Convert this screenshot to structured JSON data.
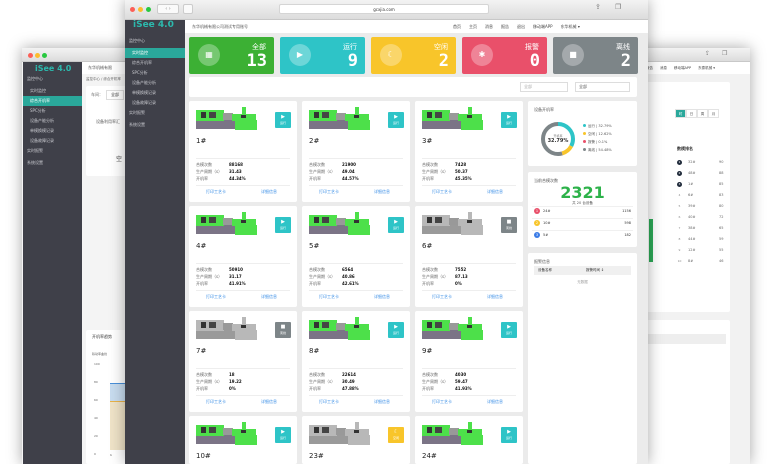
{
  "colors": {
    "green": "#3cb034",
    "teal": "#2ec4c7",
    "yellow": "#f8c52a",
    "red": "#e9506a",
    "gray": "#7d8588",
    "sidebar": "#3f4049",
    "active": "#2aa89b"
  },
  "left_window": {
    "logo": "iSee 4.0",
    "title": "东华机械有限",
    "breadcrumb": "监控中心 / 综合开机率",
    "workshop_label": "车间：",
    "workshop_value": "全部",
    "chart_title": "设备利用率汇",
    "empty_text": "空",
    "sidebar": [
      {
        "label": "监控中心",
        "group": true
      },
      {
        "label": "实时监控"
      },
      {
        "label": "综合开机率",
        "active": true
      },
      {
        "label": "SPC分析"
      },
      {
        "label": "设备产能分析"
      },
      {
        "label": "单模换模记录"
      },
      {
        "label": "设备故障记录"
      },
      {
        "label": "实时报警",
        "group": true
      },
      {
        "label": "系统设置",
        "group": true
      }
    ],
    "trend": {
      "title": "开机率趋势",
      "legend": "稼动率曲线",
      "yticks": [
        "100",
        "80",
        "60",
        "40",
        "20",
        "0"
      ],
      "xtick": "1"
    }
  },
  "right_window": {
    "header": [
      "报告",
      "消息",
      "移动端APP",
      "东泰机械 ▾"
    ],
    "tabs": [
      {
        "label": "时",
        "active": true
      },
      {
        "label": "日"
      },
      {
        "label": "周"
      },
      {
        "label": "月"
      }
    ],
    "ranking_title": "数模排名",
    "ranking": [
      {
        "rank": "1",
        "name": "32#",
        "value": "90"
      },
      {
        "rank": "2",
        "name": "48#",
        "value": "88"
      },
      {
        "rank": "3",
        "name": "1#",
        "value": "85"
      },
      {
        "rank": "4",
        "name": "6#",
        "value": "83"
      },
      {
        "rank": "5",
        "name": "39#",
        "value": "80"
      },
      {
        "rank": "6",
        "name": "40#",
        "value": "72"
      },
      {
        "rank": "7",
        "name": "38#",
        "value": "65"
      },
      {
        "rank": "8",
        "name": "44#",
        "value": "59"
      },
      {
        "rank": "9",
        "name": "12#",
        "value": "55"
      },
      {
        "rank": "10",
        "name": "8#",
        "value": "46"
      }
    ]
  },
  "main": {
    "url": "gcxjia.com",
    "logo": "iSee 4.0",
    "company": "东华机械有限公司测试专用账号",
    "header": [
      "首页",
      "主页",
      "消息",
      "报告",
      "退出",
      "移动端APP",
      "东华机械 ▾"
    ],
    "sidebar": [
      {
        "label": "监控中心",
        "group": true
      },
      {
        "label": "实时监控",
        "active": true
      },
      {
        "label": "综合开机率"
      },
      {
        "label": "SPC分析"
      },
      {
        "label": "设备产能分析"
      },
      {
        "label": "单模换模记录"
      },
      {
        "label": "设备故障记录"
      },
      {
        "label": "实时报警",
        "group": true
      },
      {
        "label": "系统设置",
        "group": true
      }
    ],
    "stats": [
      {
        "label": "全部",
        "value": "13",
        "icon": "grid",
        "color": "#3cb034"
      },
      {
        "label": "运行",
        "value": "9",
        "icon": "play",
        "color": "#2ec4c7"
      },
      {
        "label": "空闲",
        "value": "2",
        "icon": "moon",
        "color": "#f8c52a"
      },
      {
        "label": "报警",
        "value": "0",
        "icon": "alarm",
        "color": "#e9506a"
      },
      {
        "label": "离线",
        "value": "2",
        "icon": "stop",
        "color": "#7d8588"
      }
    ],
    "filters": {
      "select1": "全部",
      "select2": "全部"
    },
    "field_labels": {
      "shots": "合模次数",
      "cycle": "生产周期（s）",
      "rate": "开机率",
      "print": "打印工艺卡",
      "detail": "详细信息"
    },
    "machines": [
      {
        "name": "1#",
        "status": "运行",
        "state": "run",
        "shots": "88168",
        "cycle": "31.43",
        "rate": "44.34%"
      },
      {
        "name": "2#",
        "status": "运行",
        "state": "run",
        "shots": "21900",
        "cycle": "49.04",
        "rate": "44.57%"
      },
      {
        "name": "3#",
        "status": "运行",
        "state": "run",
        "shots": "7428",
        "cycle": "50.37",
        "rate": "45.35%"
      },
      {
        "name": "4#",
        "status": "运行",
        "state": "run",
        "shots": "50910",
        "cycle": "31.17",
        "rate": "41.91%"
      },
      {
        "name": "5#",
        "status": "运行",
        "state": "run",
        "shots": "6564",
        "cycle": "40.86",
        "rate": "42.61%"
      },
      {
        "name": "6#",
        "status": "离线",
        "state": "off",
        "shots": "7552",
        "cycle": "87.13",
        "rate": "0%"
      },
      {
        "name": "7#",
        "status": "离线",
        "state": "off",
        "shots": "18",
        "cycle": "19.22",
        "rate": "0%"
      },
      {
        "name": "8#",
        "status": "运行",
        "state": "run",
        "shots": "22614",
        "cycle": "30.49",
        "rate": "47.88%"
      },
      {
        "name": "9#",
        "status": "运行",
        "state": "run",
        "shots": "4030",
        "cycle": "59.47",
        "rate": "41.93%"
      },
      {
        "name": "10#",
        "status": "运行",
        "state": "run"
      },
      {
        "name": "23#",
        "status": "空闲",
        "state": "idle"
      },
      {
        "name": "24#",
        "status": "运行",
        "state": "run"
      }
    ],
    "uptime": {
      "title": "设备开机率",
      "center_label": "开机率",
      "center_value": "32.79%",
      "legend": [
        {
          "label": "运行 | 32.79%",
          "color": "#2ec4c7",
          "value": 32.79
        },
        {
          "label": "空闲 | 12.62%",
          "color": "#f8c52a",
          "value": 12.62
        },
        {
          "label": "报警 | 0.1%",
          "color": "#e9506a",
          "value": 0.1
        },
        {
          "label": "离线 | 54.48%",
          "color": "#7d8588",
          "value": 54.48
        }
      ]
    },
    "shots_panel": {
      "title": "当前合模次数",
      "value": "2321",
      "sub": "共 20 台设备",
      "top": [
        {
          "rank": "1",
          "name": "24#",
          "value": "1156",
          "color": "#e9506a"
        },
        {
          "rank": "2",
          "name": "10#",
          "value": "598",
          "color": "#f8c52a"
        },
        {
          "rank": "3",
          "name": "5#",
          "value": "182",
          "color": "#3a7be6"
        }
      ]
    },
    "alarm": {
      "title": "报警信息",
      "col1": "设备名称",
      "col2": "报警时间 ↕",
      "empty": "无数据"
    }
  }
}
